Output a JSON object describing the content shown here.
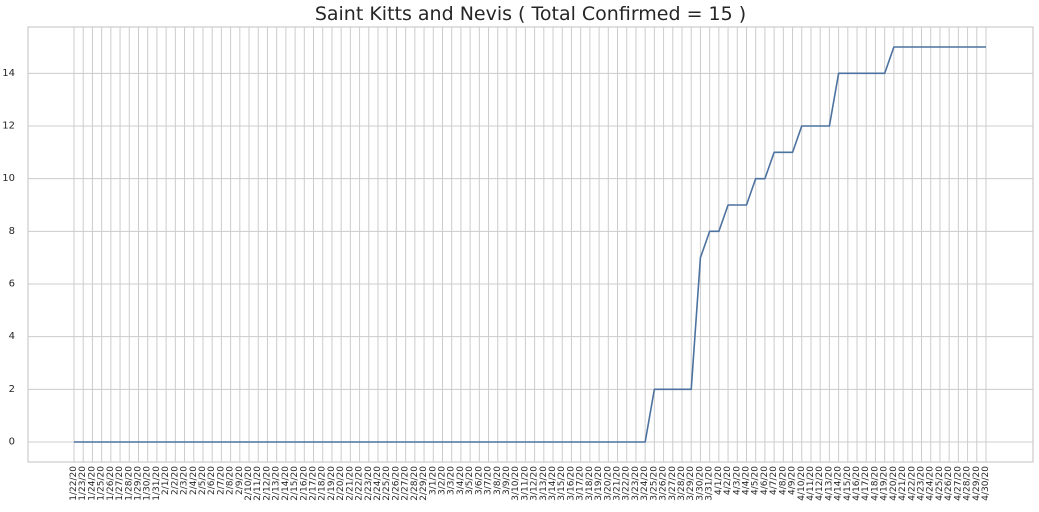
{
  "chart_data": {
    "type": "line",
    "title": "Saint Kitts and Nevis ( Total Confirmed = 15 )",
    "xlabel": "",
    "ylabel": "",
    "ylim": [
      -0.75,
      15.75
    ],
    "yticks": [
      0,
      2,
      4,
      6,
      8,
      10,
      12,
      14
    ],
    "grid": true,
    "legend": "none",
    "colors": {
      "line": "#4c72a0",
      "grid": "#cccccc",
      "frame": "#cccccc",
      "text": "#262626"
    },
    "categories": [
      "1/22/20",
      "1/23/20",
      "1/24/20",
      "1/25/20",
      "1/26/20",
      "1/27/20",
      "1/28/20",
      "1/29/20",
      "1/30/20",
      "1/31/20",
      "2/1/20",
      "2/2/20",
      "2/3/20",
      "2/4/20",
      "2/5/20",
      "2/6/20",
      "2/7/20",
      "2/8/20",
      "2/9/20",
      "2/10/20",
      "2/11/20",
      "2/12/20",
      "2/13/20",
      "2/14/20",
      "2/15/20",
      "2/16/20",
      "2/17/20",
      "2/18/20",
      "2/19/20",
      "2/20/20",
      "2/21/20",
      "2/22/20",
      "2/23/20",
      "2/24/20",
      "2/25/20",
      "2/26/20",
      "2/27/20",
      "2/28/20",
      "2/29/20",
      "3/1/20",
      "3/2/20",
      "3/3/20",
      "3/4/20",
      "3/5/20",
      "3/6/20",
      "3/7/20",
      "3/8/20",
      "3/9/20",
      "3/10/20",
      "3/11/20",
      "3/12/20",
      "3/13/20",
      "3/14/20",
      "3/15/20",
      "3/16/20",
      "3/17/20",
      "3/18/20",
      "3/19/20",
      "3/20/20",
      "3/21/20",
      "3/22/20",
      "3/23/20",
      "3/24/20",
      "3/25/20",
      "3/26/20",
      "3/27/20",
      "3/28/20",
      "3/29/20",
      "3/30/20",
      "3/31/20",
      "4/1/20",
      "4/2/20",
      "4/3/20",
      "4/4/20",
      "4/5/20",
      "4/6/20",
      "4/7/20",
      "4/8/20",
      "4/9/20",
      "4/10/20",
      "4/11/20",
      "4/12/20",
      "4/13/20",
      "4/14/20",
      "4/15/20",
      "4/16/20",
      "4/17/20",
      "4/18/20",
      "4/19/20",
      "4/20/20",
      "4/21/20",
      "4/22/20",
      "4/23/20",
      "4/24/20",
      "4/25/20",
      "4/26/20",
      "4/27/20",
      "4/28/20",
      "4/29/20",
      "4/30/20"
    ],
    "series": [
      {
        "values": [
          0,
          0,
          0,
          0,
          0,
          0,
          0,
          0,
          0,
          0,
          0,
          0,
          0,
          0,
          0,
          0,
          0,
          0,
          0,
          0,
          0,
          0,
          0,
          0,
          0,
          0,
          0,
          0,
          0,
          0,
          0,
          0,
          0,
          0,
          0,
          0,
          0,
          0,
          0,
          0,
          0,
          0,
          0,
          0,
          0,
          0,
          0,
          0,
          0,
          0,
          0,
          0,
          0,
          0,
          0,
          0,
          0,
          0,
          0,
          0,
          0,
          0,
          0,
          2,
          2,
          2,
          2,
          2,
          7,
          8,
          8,
          9,
          9,
          9,
          10,
          10,
          11,
          11,
          11,
          12,
          12,
          12,
          12,
          14,
          14,
          14,
          14,
          14,
          14,
          15,
          15,
          15,
          15,
          15,
          15,
          15,
          15,
          15,
          15,
          15
        ]
      }
    ]
  }
}
